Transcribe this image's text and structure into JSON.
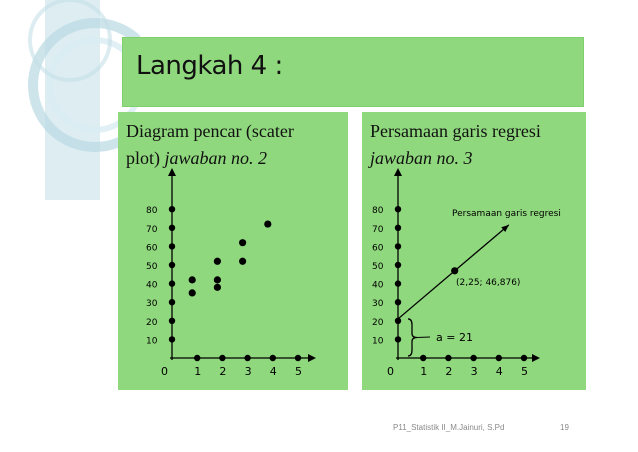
{
  "slide": {
    "title": "Langkah 4 :",
    "footer": "P11_Statistik II_M.Jainuri, S.Pd",
    "page_number": "19"
  },
  "left_panel": {
    "heading_line1": "Diagram pencar (scater",
    "heading_line2_plain": "plot) ",
    "heading_line2_italic": "jawaban no. 2"
  },
  "right_panel": {
    "heading_line1": "Persamaan garis regresi",
    "heading_line2_italic": "jawaban no. 3",
    "line_label": "Persamaan garis regresi",
    "point_label": "(2,25; 46,876)",
    "intercept_label": "a = 21"
  },
  "chart_data": [
    {
      "type": "scatter",
      "title": "",
      "xlabel": "",
      "ylabel": "",
      "x_ticks": [
        "0",
        "1",
        "2",
        "3",
        "4",
        "5"
      ],
      "y_ticks": [
        "10",
        "20",
        "30",
        "40",
        "50",
        "60",
        "70",
        "80"
      ],
      "xlim": [
        0,
        5.5
      ],
      "ylim": [
        0,
        88
      ],
      "points": [
        {
          "x": 1,
          "y": 42
        },
        {
          "x": 1,
          "y": 35
        },
        {
          "x": 2,
          "y": 52
        },
        {
          "x": 2,
          "y": 42
        },
        {
          "x": 2,
          "y": 38
        },
        {
          "x": 3,
          "y": 62
        },
        {
          "x": 3,
          "y": 52
        },
        {
          "x": 4,
          "y": 72
        }
      ]
    },
    {
      "type": "line",
      "title": "",
      "xlabel": "",
      "ylabel": "",
      "x_ticks": [
        "0",
        "1",
        "2",
        "3",
        "4",
        "5"
      ],
      "y_ticks": [
        "10",
        "20",
        "30",
        "40",
        "50",
        "60",
        "70",
        "80"
      ],
      "xlim": [
        0,
        5.5
      ],
      "ylim": [
        0,
        88
      ],
      "regression_line": {
        "intercept": 21,
        "through_point": {
          "x": 2.25,
          "y": 46.876
        }
      },
      "highlight_point": {
        "x": 2.25,
        "y": 46.876
      },
      "annotations": [
        "Persamaan garis regresi",
        "(2,25; 46,876)",
        "a = 21"
      ]
    }
  ]
}
